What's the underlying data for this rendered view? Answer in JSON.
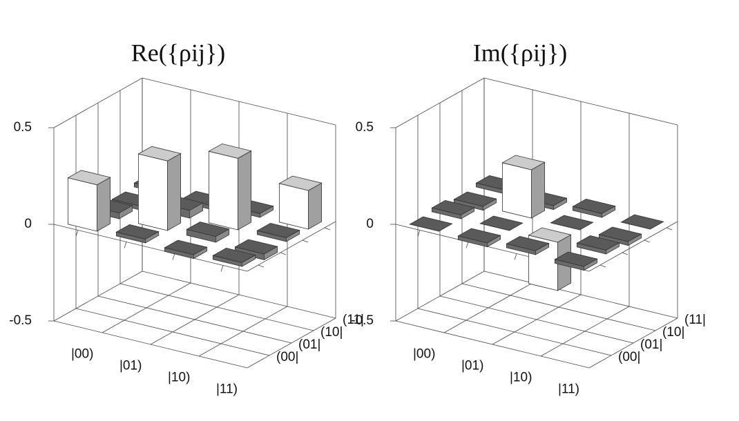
{
  "chart_data": [
    {
      "type": "bar3d",
      "title": "Re({ρij})",
      "rows": [
        "|00)",
        "|01)",
        "|10)",
        "|11)"
      ],
      "columns": [
        "(00|",
        "(01|",
        "(10|",
        "(11|"
      ],
      "values": [
        [
          0.24,
          0.03,
          -0.02,
          0.02
        ],
        [
          0.02,
          0.36,
          0.04,
          -0.02
        ],
        [
          -0.02,
          0.03,
          0.37,
          0.02
        ],
        [
          0.02,
          -0.03,
          0.02,
          0.2
        ]
      ],
      "zlim": [
        -0.5,
        0.5
      ],
      "zticks": [
        -0.5,
        0,
        0.5
      ],
      "grid": true
    },
    {
      "type": "bar3d",
      "title": "Im({ρij})",
      "rows": [
        "|00)",
        "|01)",
        "|10)",
        "|11)"
      ],
      "columns": [
        "(00|",
        "(01|",
        "(10|",
        "(11|"
      ],
      "values": [
        [
          0,
          0.02,
          -0.02,
          0.02
        ],
        [
          -0.02,
          0,
          0.25,
          -0.02
        ],
        [
          0.02,
          -0.25,
          0,
          0.02
        ],
        [
          -0.02,
          0.02,
          -0.02,
          0
        ]
      ],
      "zlim": [
        -0.5,
        0.5
      ],
      "zticks": [
        -0.5,
        0,
        0.5
      ],
      "grid": true
    }
  ]
}
